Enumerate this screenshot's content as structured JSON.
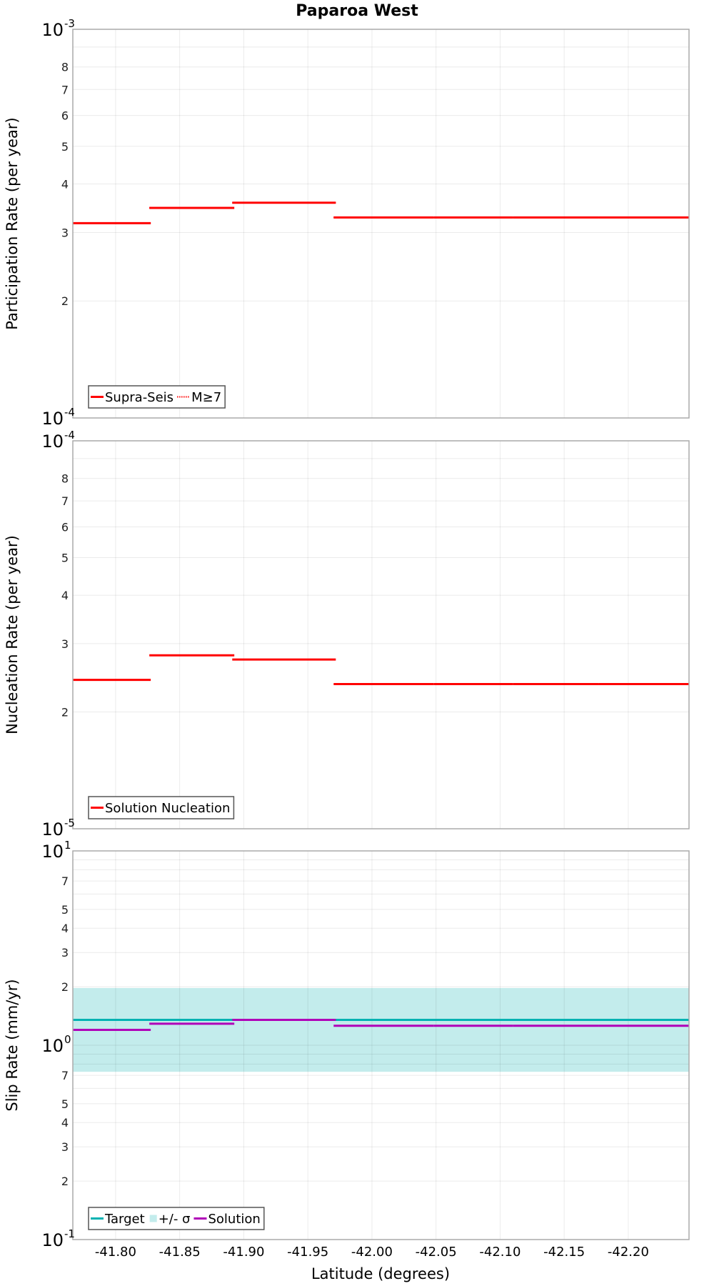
{
  "chart_data": {
    "type": "line",
    "title": "Paparoa West",
    "xlabel": "Latitude (degrees)",
    "xlim": [
      -41.7666,
      -42.2474
    ],
    "xticks": [
      -41.8,
      -41.85,
      -41.9,
      -41.95,
      -42.0,
      -42.05,
      -42.1,
      -42.15,
      -42.2
    ],
    "xtick_labels": [
      "-41.80",
      "-41.85",
      "-41.90",
      "-41.95",
      "-42.00",
      "-42.05",
      "-42.10",
      "-42.15",
      "-42.20"
    ],
    "grid": true,
    "panels": [
      {
        "id": "participation",
        "ylabel": "Participation Rate (per year)",
        "yscale": "log",
        "ylim": [
          0.0001,
          0.001
        ],
        "major_ticks": [
          {
            "base": "10",
            "exp": "-3",
            "value": 0.001
          },
          {
            "base": "10",
            "exp": "-4",
            "value": 0.0001
          }
        ],
        "minor_tick_labels": [
          2,
          3,
          4,
          5,
          6,
          7,
          8
        ],
        "minor_gridlines": [
          2,
          3,
          4,
          5,
          6,
          7,
          8,
          9
        ],
        "legend": [
          {
            "label": "Supra-Seis",
            "style": "solid",
            "color": "#ff0000"
          },
          {
            "label": "M≥7",
            "style": "dotted",
            "color": "#ff0000"
          }
        ],
        "series": [
          {
            "name": "Supra-Seis",
            "color": "#ff0000",
            "style": "solid",
            "segments": [
              {
                "x0": -41.7666,
                "x1": -41.8274,
                "y": 0.000317
              },
              {
                "x0": -41.8263,
                "x1": -41.8926,
                "y": 0.000347
              },
              {
                "x0": -41.891,
                "x1": -41.9718,
                "y": 0.000358
              },
              {
                "x0": -41.9701,
                "x1": -42.0481,
                "y": 0.000328
              },
              {
                "x0": -42.0481,
                "x1": -42.11,
                "y": 0.000328
              },
              {
                "x0": -42.11,
                "x1": -42.1769,
                "y": 0.000328
              },
              {
                "x0": -42.1769,
                "x1": -42.2474,
                "y": 0.000328
              }
            ]
          },
          {
            "name": "M≥7",
            "color": "#ff0000",
            "style": "dotted",
            "segments": [
              {
                "x0": -41.7666,
                "x1": -41.8274,
                "y": 0.000317
              },
              {
                "x0": -41.8263,
                "x1": -41.8926,
                "y": 0.000347
              },
              {
                "x0": -41.891,
                "x1": -41.9718,
                "y": 0.000358
              },
              {
                "x0": -41.9701,
                "x1": -42.0481,
                "y": 0.000328
              },
              {
                "x0": -42.0481,
                "x1": -42.11,
                "y": 0.000328
              },
              {
                "x0": -42.11,
                "x1": -42.1769,
                "y": 0.000328
              },
              {
                "x0": -42.1769,
                "x1": -42.2474,
                "y": 0.000328
              }
            ]
          }
        ]
      },
      {
        "id": "nucleation",
        "ylabel": "Nucleation Rate (per year)",
        "yscale": "log",
        "ylim": [
          1e-05,
          0.0001
        ],
        "major_ticks": [
          {
            "base": "10",
            "exp": "-4",
            "value": 0.0001
          },
          {
            "base": "10",
            "exp": "-5",
            "value": 1e-05
          }
        ],
        "minor_tick_labels": [
          2,
          3,
          4,
          5,
          6,
          7,
          8
        ],
        "minor_gridlines": [
          2,
          3,
          4,
          5,
          6,
          7,
          8,
          9
        ],
        "legend": [
          {
            "label": "Solution Nucleation",
            "style": "solid",
            "color": "#ff0000"
          }
        ],
        "series": [
          {
            "name": "Solution Nucleation",
            "color": "#ff0000",
            "style": "solid",
            "segments": [
              {
                "x0": -41.7666,
                "x1": -41.8274,
                "y": 2.42e-05
              },
              {
                "x0": -41.8263,
                "x1": -41.8926,
                "y": 2.8e-05
              },
              {
                "x0": -41.891,
                "x1": -41.9718,
                "y": 2.73e-05
              },
              {
                "x0": -41.9701,
                "x1": -42.0481,
                "y": 2.36e-05
              },
              {
                "x0": -42.0481,
                "x1": -42.11,
                "y": 2.36e-05
              },
              {
                "x0": -42.11,
                "x1": -42.1769,
                "y": 2.36e-05
              },
              {
                "x0": -42.1769,
                "x1": -42.2474,
                "y": 2.36e-05
              }
            ]
          }
        ]
      },
      {
        "id": "slip",
        "ylabel": "Slip Rate (mm/yr)",
        "yscale": "log",
        "ylim": [
          0.1,
          10
        ],
        "major_ticks": [
          {
            "base": "10",
            "exp": "1",
            "value": 10
          },
          {
            "base": "10",
            "exp": "0",
            "value": 1
          },
          {
            "base": "10",
            "exp": "-1",
            "value": 0.1
          }
        ],
        "minor_tick_labels": [
          2,
          3,
          4,
          5,
          7
        ],
        "minor_gridlines": [
          2,
          3,
          4,
          5,
          6,
          7,
          8,
          9
        ],
        "legend": [
          {
            "label": "Target",
            "style": "solid",
            "color": "#00b2b2"
          },
          {
            "label": "+/- σ",
            "style": "box",
            "color": "#c3ecec"
          },
          {
            "label": "Solution",
            "style": "solid",
            "color": "#b000b8"
          }
        ],
        "band": {
          "name": "+/- σ",
          "color": "#c3ecec",
          "x0": -41.7666,
          "x1": -42.2474,
          "y_low": 0.73,
          "y_high": 1.97
        },
        "series": [
          {
            "name": "Target",
            "color": "#00b2b2",
            "style": "solid",
            "segments": [
              {
                "x0": -41.7666,
                "x1": -42.2474,
                "y": 1.35
              }
            ]
          },
          {
            "name": "Solution",
            "color": "#b000b8",
            "style": "solid",
            "segments": [
              {
                "x0": -41.7666,
                "x1": -41.8274,
                "y": 1.2
              },
              {
                "x0": -41.8263,
                "x1": -41.8926,
                "y": 1.29
              },
              {
                "x0": -41.891,
                "x1": -41.9718,
                "y": 1.35
              },
              {
                "x0": -41.9701,
                "x1": -42.0481,
                "y": 1.26
              },
              {
                "x0": -42.0481,
                "x1": -42.11,
                "y": 1.26
              },
              {
                "x0": -42.11,
                "x1": -42.1769,
                "y": 1.26
              },
              {
                "x0": -42.1769,
                "x1": -42.2474,
                "y": 1.26
              }
            ]
          }
        ]
      }
    ]
  }
}
